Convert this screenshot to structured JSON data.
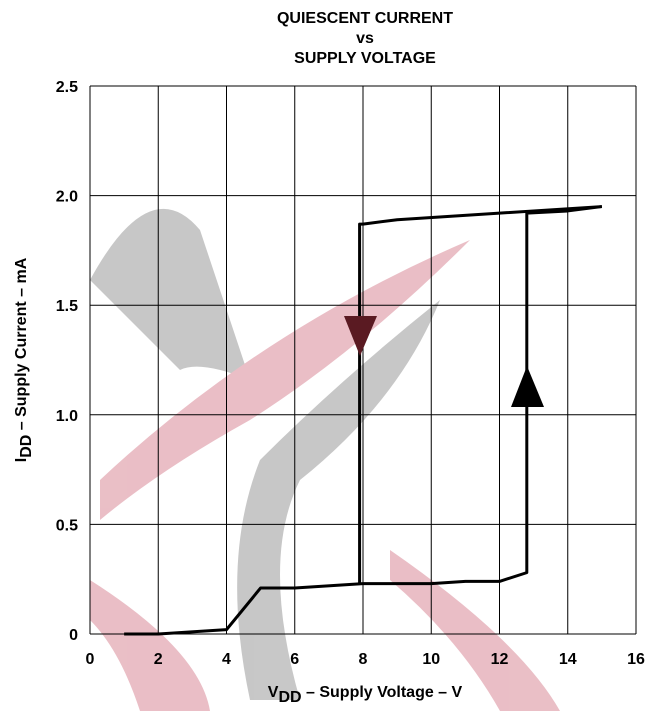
{
  "chart_data": {
    "type": "line",
    "title_lines": [
      "QUIESCENT CURRENT",
      "vs",
      "SUPPLY VOLTAGE"
    ],
    "xlabel": {
      "symbol": "V",
      "subscript": "DD",
      "text": " – Supply Voltage – V"
    },
    "ylabel": {
      "symbol": "I",
      "subscript": "DD",
      "text": " – Supply Current – mA"
    },
    "xlim": [
      0,
      16
    ],
    "xticks": [
      0,
      2,
      4,
      6,
      8,
      10,
      12,
      14,
      16
    ],
    "ylim": [
      0,
      2.5
    ],
    "yticks": [
      0,
      0.5,
      {
        "value": 1,
        "label": "1.0"
      },
      1.5,
      {
        "value": 2,
        "label": "2.0"
      },
      2.5
    ],
    "grid": true,
    "series": [
      {
        "color": "#000000",
        "x": [
          1,
          2,
          4,
          5,
          6,
          8,
          10,
          11,
          12,
          12.8,
          12.8,
          14,
          15
        ],
        "values": [
          0,
          0,
          0.02,
          0.21,
          0.21,
          0.23,
          0.23,
          0.24,
          0.24,
          0.28,
          1.92,
          1.93,
          1.95
        ]
      },
      {
        "color": "#000000",
        "x": [
          15,
          12,
          9,
          8,
          7.9,
          7.9
        ],
        "values": [
          1.95,
          1.92,
          1.89,
          1.87,
          1.87,
          0.23
        ]
      }
    ]
  }
}
